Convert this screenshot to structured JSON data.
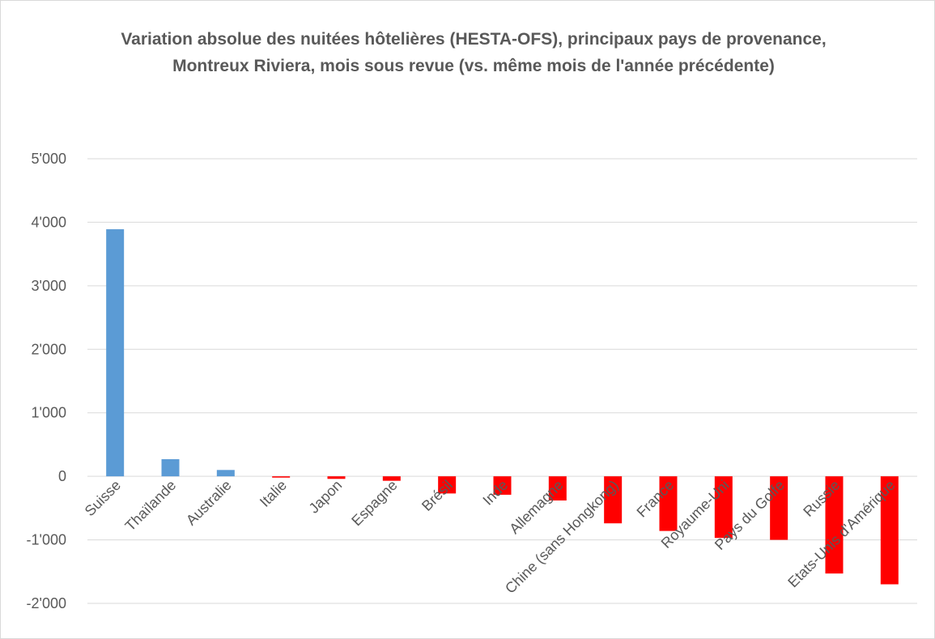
{
  "chart_data": {
    "type": "bar",
    "title": "Variation absolue des nuitées hôtelières (HESTA-OFS), principaux pays de provenance, Montreux Riviera, mois sous revue (vs. même mois de l'année précédente)",
    "xlabel": "",
    "ylabel": "",
    "categories": [
      "Suisse",
      "Thaïlande",
      "Australie",
      "Italie",
      "Japon",
      "Espagne",
      "Brésil",
      "Inde",
      "Allemagne",
      "Chine (sans Hongkong)",
      "France",
      "Royaume-Uni",
      "Pays du Golfe",
      "Russie",
      "Etats-Unis d'Amérique"
    ],
    "values": [
      3890,
      270,
      100,
      -20,
      -40,
      -70,
      -270,
      -290,
      -380,
      -740,
      -860,
      -970,
      -1000,
      -1530,
      -1700
    ],
    "ylim": [
      -2000,
      5000
    ],
    "yticks": [
      5000,
      4000,
      3000,
      2000,
      1000,
      0,
      -1000,
      -2000
    ],
    "ytick_labels": [
      "5'000",
      "4'000",
      "3'000",
      "2'000",
      "1'000",
      "0",
      "-1'000",
      "-2'000"
    ],
    "grid": true,
    "legend": "none",
    "colors": {
      "positive": "#5b9bd5",
      "negative": "#ff0000",
      "grid": "#d9d9d9",
      "text": "#595959"
    }
  }
}
